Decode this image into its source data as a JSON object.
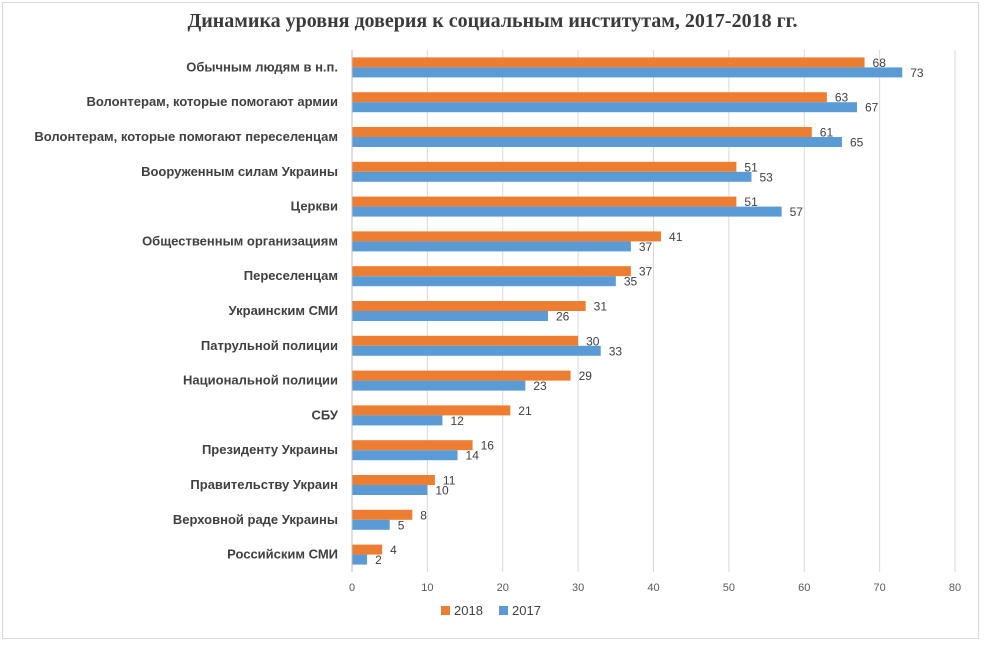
{
  "chart_data": {
    "type": "bar",
    "orientation": "horizontal",
    "title": "Динамика уровня доверия к социальным институтам,  2017-2018 гг.",
    "categories": [
      "Обычным людям в н.п.",
      "Волонтерам, которые помогают армии",
      "Волонтерам, которые помогают переселенцам",
      "Вооруженным силам Украины",
      "Церкви",
      "Общественным организациям",
      "Переселенцам",
      "Украинским СМИ",
      "Патрульной полиции",
      "Национальной полиции",
      "СБУ",
      "Президенту Украины",
      "Правительству Украин",
      "Верховной раде Украины",
      "Российским СМИ"
    ],
    "series": [
      {
        "name": "2018",
        "color": "#ed7d31",
        "values": [
          68,
          63,
          61,
          51,
          51,
          41,
          37,
          31,
          30,
          29,
          21,
          16,
          11,
          8,
          4
        ]
      },
      {
        "name": "2017",
        "color": "#5b9bd5",
        "values": [
          73,
          67,
          65,
          53,
          57,
          37,
          35,
          26,
          33,
          23,
          12,
          14,
          10,
          5,
          2
        ]
      }
    ],
    "xlim": [
      0,
      80
    ],
    "xticks": [
      0,
      10,
      20,
      30,
      40,
      50,
      60,
      70,
      80
    ],
    "grid": true,
    "legend": "bottom"
  }
}
